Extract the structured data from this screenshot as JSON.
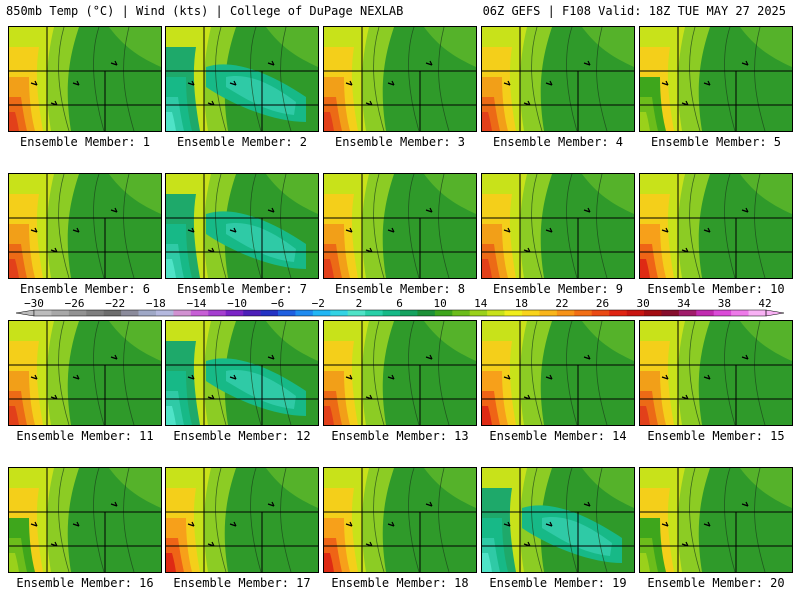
{
  "header": {
    "left": "850mb Temp (°C) | Wind (kts) | College of DuPage NEXLAB",
    "right": "06Z GEFS | F108 Valid: 18Z TUE MAY 27 2025"
  },
  "panels": [
    {
      "label": "Ensemble Member: 1",
      "scheme": "warm"
    },
    {
      "label": "Ensemble Member: 2",
      "scheme": "cool"
    },
    {
      "label": "Ensemble Member: 3",
      "scheme": "warm"
    },
    {
      "label": "Ensemble Member: 4",
      "scheme": "warm"
    },
    {
      "label": "Ensemble Member: 5",
      "scheme": "mild"
    },
    {
      "label": "Ensemble Member: 6",
      "scheme": "warm"
    },
    {
      "label": "Ensemble Member: 7",
      "scheme": "cool"
    },
    {
      "label": "Ensemble Member: 8",
      "scheme": "warm"
    },
    {
      "label": "Ensemble Member: 9",
      "scheme": "warm"
    },
    {
      "label": "Ensemble Member: 10",
      "scheme": "hot"
    },
    {
      "label": "Ensemble Member: 11",
      "scheme": "warm"
    },
    {
      "label": "Ensemble Member: 12",
      "scheme": "cool"
    },
    {
      "label": "Ensemble Member: 13",
      "scheme": "warm"
    },
    {
      "label": "Ensemble Member: 14",
      "scheme": "hot"
    },
    {
      "label": "Ensemble Member: 15",
      "scheme": "warm"
    },
    {
      "label": "Ensemble Member: 16",
      "scheme": "mild"
    },
    {
      "label": "Ensemble Member: 17",
      "scheme": "hot"
    },
    {
      "label": "Ensemble Member: 18",
      "scheme": "hot"
    },
    {
      "label": "Ensemble Member: 19",
      "scheme": "cool"
    },
    {
      "label": "Ensemble Member: 20",
      "scheme": "mild"
    }
  ],
  "colorbar": {
    "ticks": [
      "−30",
      "−26",
      "−22",
      "−18",
      "−14",
      "−10",
      "−6",
      "−2",
      "2",
      "6",
      "10",
      "14",
      "18",
      "22",
      "26",
      "30",
      "34",
      "38",
      "42"
    ],
    "colors": [
      "#bcbcbc",
      "#a8a8a8",
      "#929292",
      "#7f7f7f",
      "#6e6e6e",
      "#8b8b9b",
      "#9fa8c6",
      "#b4b8de",
      "#d191d1",
      "#c75fd6",
      "#a53fd0",
      "#7b24c6",
      "#4d1fb8",
      "#2433c4",
      "#1f5fe0",
      "#1f8bf0",
      "#21b6f5",
      "#32d3e4",
      "#4fe3c7",
      "#29d0a8",
      "#17b987",
      "#16a35f",
      "#1d9137",
      "#3ea61c",
      "#6cbd1b",
      "#9ad11b",
      "#c8e21a",
      "#f0ee1c",
      "#f9d41b",
      "#f9b51a",
      "#f79318",
      "#f26f16",
      "#ea4a14",
      "#e02412",
      "#c91511",
      "#a40e12",
      "#860e2c",
      "#a01c6a",
      "#c12bb0",
      "#db4bd8",
      "#ee7ae9",
      "#f8b1f4"
    ],
    "schemes": {
      "warm": [
        "#2f9a2a",
        "#55b22a",
        "#8ccc24",
        "#c8e21a",
        "#f4cf1a",
        "#f29f18",
        "#ec6a16",
        "#e2401a"
      ],
      "cool": [
        "#2f9a2a",
        "#55b22a",
        "#8ccc24",
        "#c8e21a",
        "#1ea96a",
        "#17b987",
        "#2fcaa6",
        "#4fe3c7"
      ],
      "mild": [
        "#2f9a2a",
        "#55b22a",
        "#8ccc24",
        "#c8e21a",
        "#f4cf1a",
        "#3ea61c",
        "#6cbd1b",
        "#9ad11b"
      ],
      "hot": [
        "#2f9a2a",
        "#55b22a",
        "#8ccc24",
        "#c8e21a",
        "#f4cf1a",
        "#f7a01a",
        "#ef6416",
        "#de2a14"
      ]
    }
  }
}
